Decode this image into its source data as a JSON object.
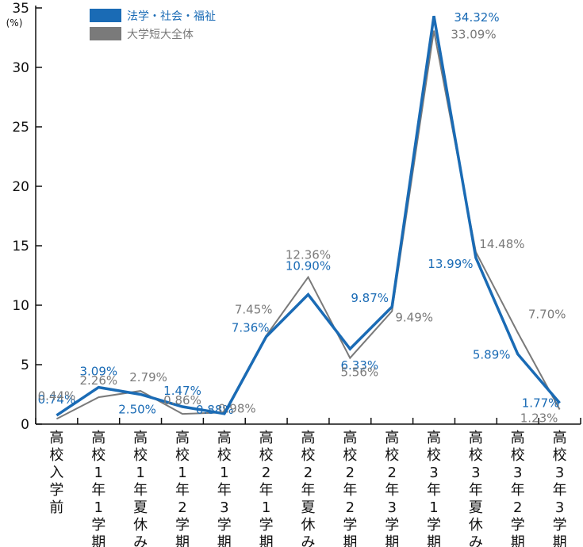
{
  "chart_data": {
    "type": "line",
    "ylabel": "(%)",
    "ylim": [
      0,
      35
    ],
    "yticks": [
      0,
      5,
      10,
      15,
      20,
      25,
      30,
      35
    ],
    "grid": false,
    "legend": "top-left",
    "categories": [
      "高校入学前",
      "高校1年1学期",
      "高校1年夏休み",
      "高校1年2学期",
      "高校1年3学期",
      "高校2年1学期",
      "高校2年夏休み",
      "高校2年2学期",
      "高校2年3学期",
      "高校3年1学期",
      "高校3年夏休み",
      "高校3年2学期",
      "高校3年3学期"
    ],
    "series": [
      {
        "name": "法学・社会・福祉",
        "color": "#1a6bb5",
        "values": [
          0.74,
          3.09,
          2.5,
          1.47,
          0.88,
          7.36,
          10.9,
          6.33,
          9.87,
          34.32,
          13.99,
          5.89,
          1.77
        ],
        "labels": [
          "0.74%",
          "3.09%",
          "2.50%",
          "1.47%",
          "0.88%",
          "7.36%",
          "10.90%",
          "6.33%",
          "9.87%",
          "34.32%",
          "13.99%",
          "5.89%",
          "1.77%"
        ]
      },
      {
        "name": "大学短大全体",
        "color": "#7a7a7a",
        "values": [
          0.44,
          2.26,
          2.79,
          0.86,
          0.98,
          7.45,
          12.36,
          5.56,
          9.49,
          33.09,
          14.48,
          7.7,
          1.23
        ],
        "labels": [
          "0.44%",
          "2.26%",
          "2.79%",
          "0.86%",
          "0.98%",
          "7.45%",
          "12.36%",
          "5.56%",
          "9.49%",
          "33.09%",
          "14.48%",
          "7.70%",
          "1.23%"
        ]
      }
    ]
  }
}
